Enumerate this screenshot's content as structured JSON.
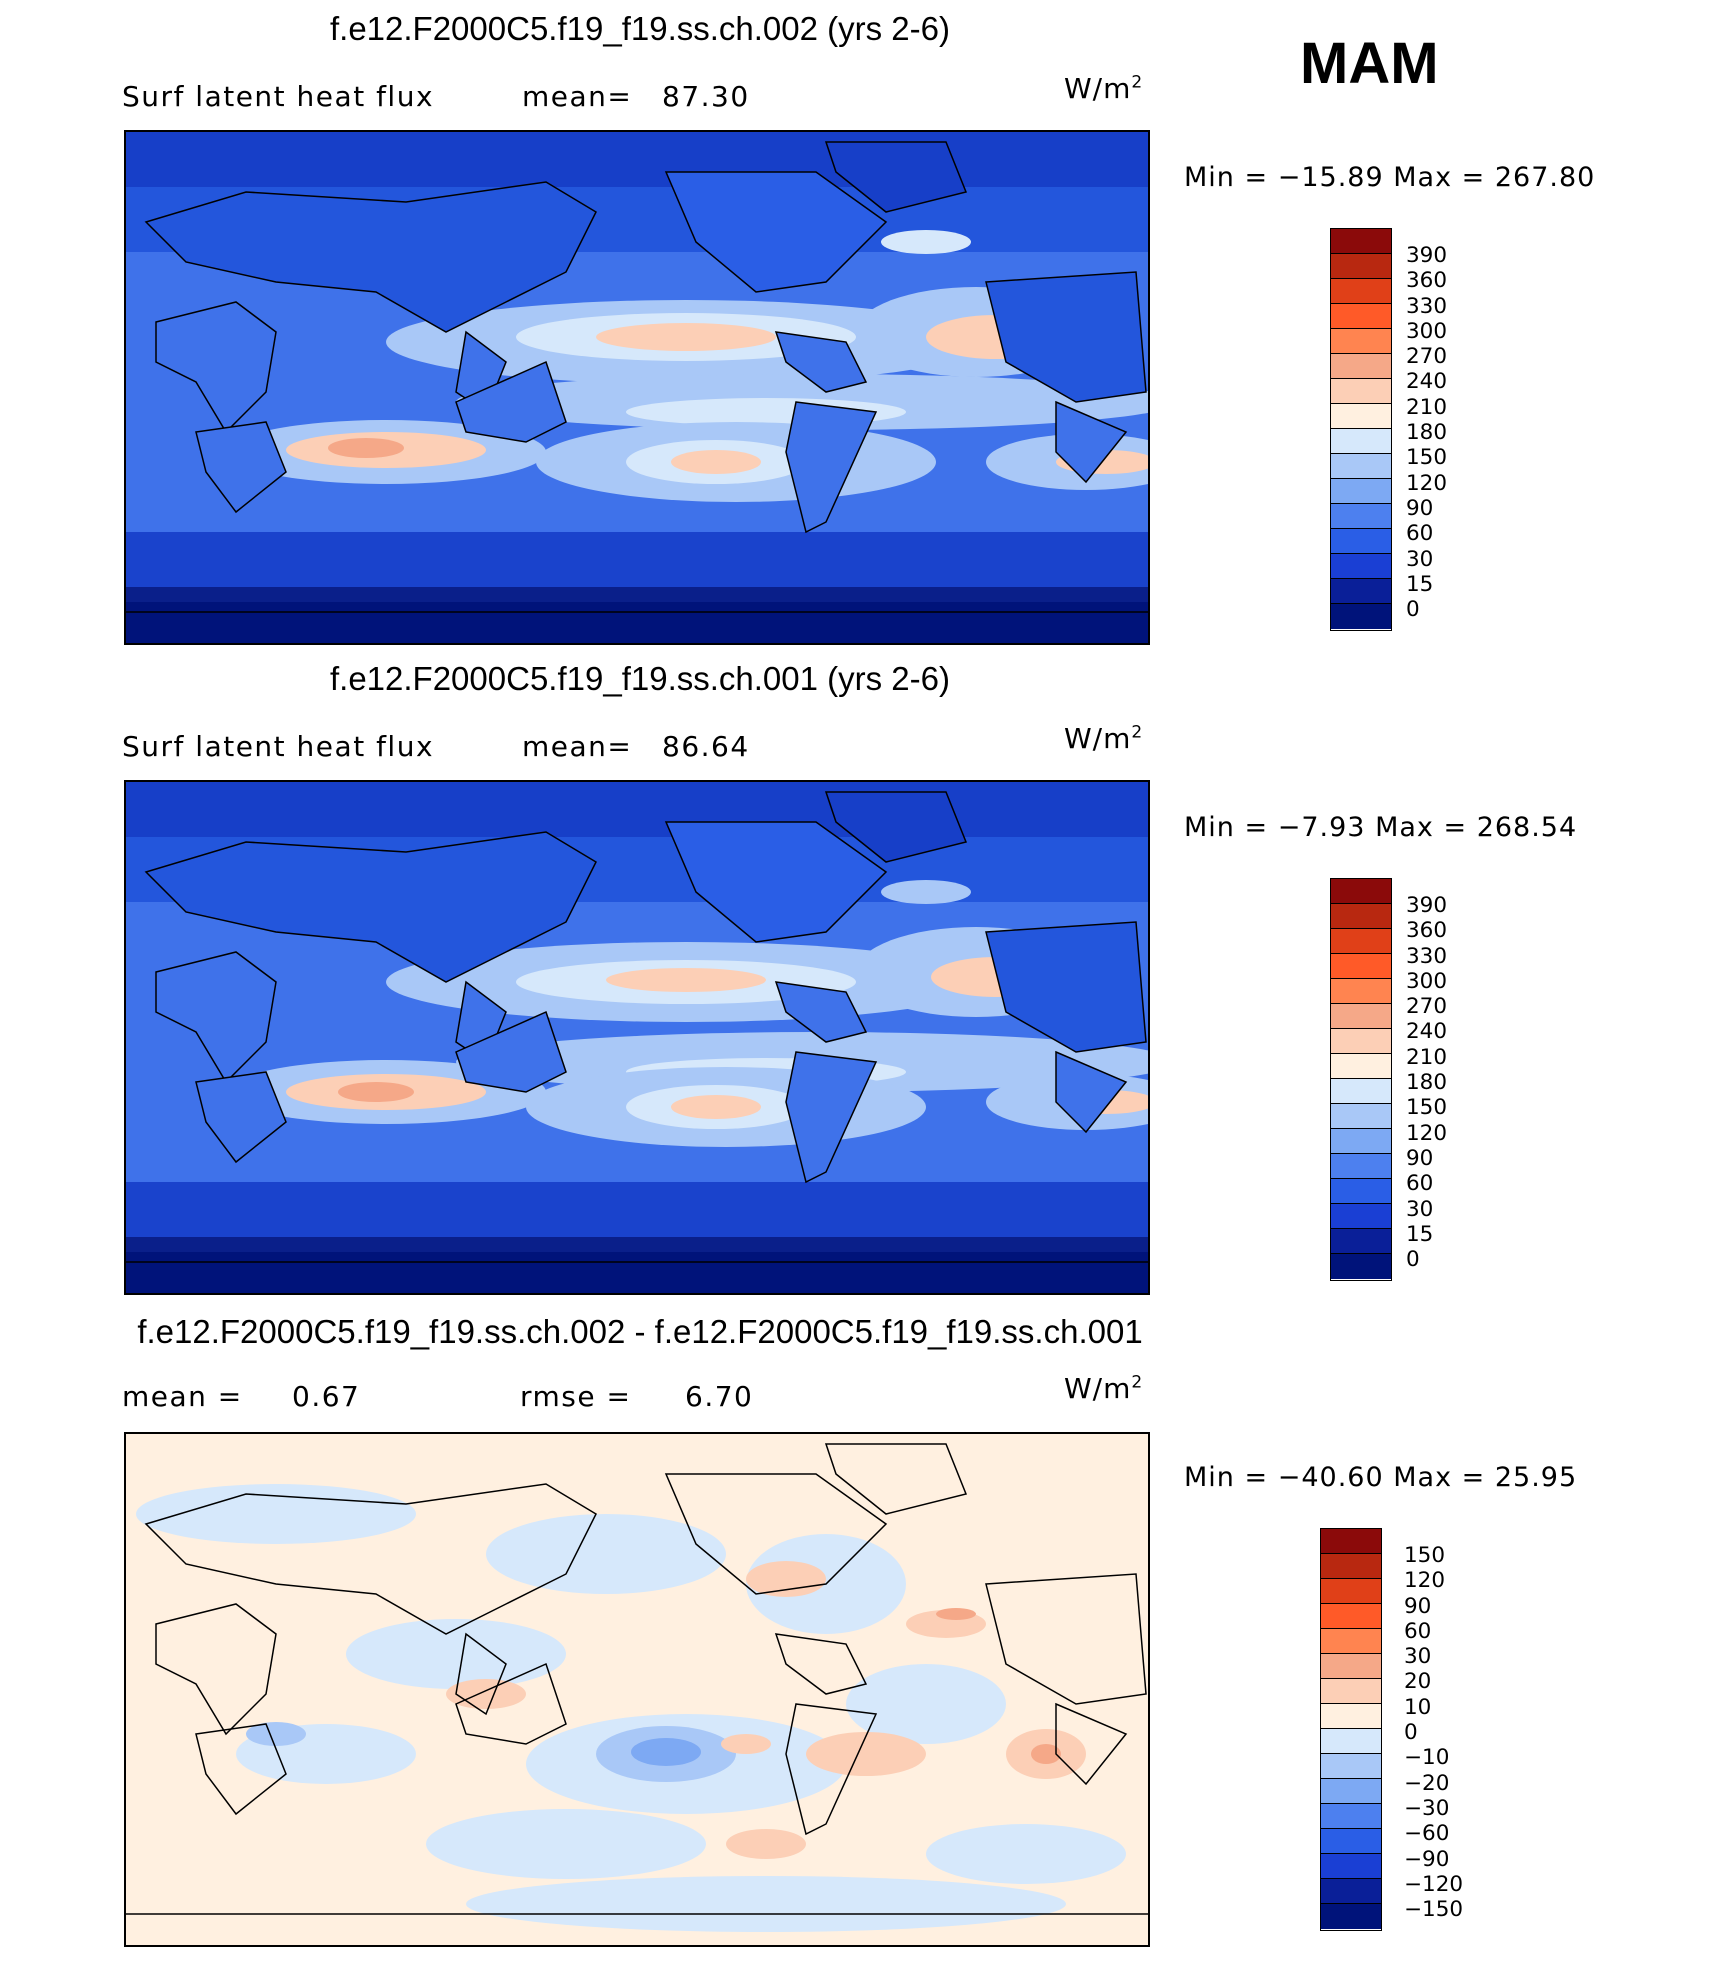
{
  "season": "MAM",
  "units_base": "W/m",
  "units_exp": "2",
  "panels": [
    {
      "title": "f.e12.F2000C5.f19_f19.ss.ch.002 (yrs 2-6)",
      "variable": "Surf  latent  heat  flux",
      "stat1_label": "mean=",
      "stat1_value": "87.30",
      "min_label": "Min  =",
      "min_value": "−15.89",
      "max_label": "Max  =",
      "max_value": "267.80",
      "colorbar_levels": [
        "390",
        "360",
        "330",
        "300",
        "270",
        "240",
        "210",
        "180",
        "150",
        "120",
        "90",
        "60",
        "30",
        "15",
        "0"
      ],
      "colorbar_colors": [
        "#8b0a0a",
        "#b82810",
        "#e04018",
        "#ff5a28",
        "#ff8450",
        "#f5a888",
        "#fccfb6",
        "#fff0e0",
        "#d6e8fb",
        "#a9c8f7",
        "#7da9f3",
        "#4d80ef",
        "#2a5ee6",
        "#1a3fd4",
        "#0a1f98",
        "#00137a"
      ]
    },
    {
      "title": "f.e12.F2000C5.f19_f19.ss.ch.001 (yrs 2-6)",
      "variable": "Surf  latent  heat  flux",
      "stat1_label": "mean=",
      "stat1_value": "86.64",
      "min_label": "Min  =",
      "min_value": "−7.93",
      "max_label": "Max  =",
      "max_value": "268.54",
      "colorbar_levels": [
        "390",
        "360",
        "330",
        "300",
        "270",
        "240",
        "210",
        "180",
        "150",
        "120",
        "90",
        "60",
        "30",
        "15",
        "0"
      ],
      "colorbar_colors": [
        "#8b0a0a",
        "#b82810",
        "#e04018",
        "#ff5a28",
        "#ff8450",
        "#f5a888",
        "#fccfb6",
        "#fff0e0",
        "#d6e8fb",
        "#a9c8f7",
        "#7da9f3",
        "#4d80ef",
        "#2a5ee6",
        "#1a3fd4",
        "#0a1f98",
        "#00137a"
      ]
    },
    {
      "title": "f.e12.F2000C5.f19_f19.ss.ch.002 - f.e12.F2000C5.f19_f19.ss.ch.001",
      "stat1_label": "mean  =",
      "stat1_value": "0.67",
      "stat2_label": "rmse  =",
      "stat2_value": "6.70",
      "min_label": "Min  =",
      "min_value": "−40.60",
      "max_label": "Max  =",
      "max_value": "25.95",
      "colorbar_levels": [
        "150",
        "120",
        "90",
        "60",
        "30",
        "20",
        "10",
        "0",
        "−10",
        "−20",
        "−30",
        "−60",
        "−90",
        "−120",
        "−150"
      ],
      "colorbar_colors": [
        "#8b0a0a",
        "#b82810",
        "#e04018",
        "#ff5a28",
        "#ff8450",
        "#f5a888",
        "#fccfb6",
        "#fff0e0",
        "#d6e8fb",
        "#a9c8f7",
        "#7da9f3",
        "#4d80ef",
        "#2a5ee6",
        "#1a3fd4",
        "#0a1f98",
        "#00137a"
      ]
    }
  ]
}
